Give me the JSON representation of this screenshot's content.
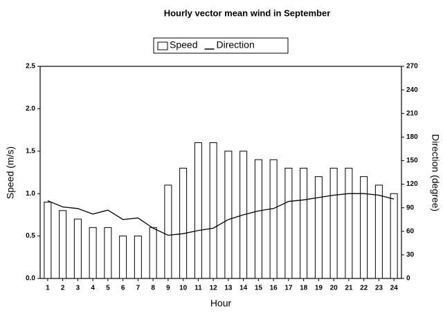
{
  "chart_data": {
    "type": "bar",
    "title": "Hourly vector mean wind in September",
    "xlabel": "Hour",
    "ylabel": "Speed (m/s)",
    "y2label": "Direction (degree)",
    "categories": [
      "1",
      "2",
      "3",
      "4",
      "5",
      "6",
      "7",
      "8",
      "9",
      "10",
      "11",
      "12",
      "13",
      "14",
      "15",
      "16",
      "17",
      "18",
      "19",
      "20",
      "21",
      "22",
      "23",
      "24"
    ],
    "series": [
      {
        "name": "Speed",
        "type": "bar",
        "color": "#ffffff",
        "values": [
          0.9,
          0.8,
          0.7,
          0.6,
          0.6,
          0.5,
          0.5,
          0.6,
          1.1,
          1.3,
          1.6,
          1.6,
          1.5,
          1.5,
          1.4,
          1.4,
          1.3,
          1.3,
          1.2,
          1.3,
          1.3,
          1.2,
          1.1,
          1.0
        ]
      },
      {
        "name": "Direction",
        "type": "line",
        "axis": "y2",
        "color": "#000000",
        "values": [
          99,
          91,
          89,
          82,
          87,
          75,
          77,
          64,
          55,
          57,
          61,
          64,
          75,
          81,
          86,
          89,
          98,
          100,
          103,
          106,
          108,
          108,
          106,
          101
        ]
      }
    ],
    "ylim": [
      0,
      2.5
    ],
    "yticks": [
      {
        "value": 0,
        "label": "0.0"
      },
      0.5,
      {
        "value": 1,
        "label": "1.0"
      },
      1.5,
      {
        "value": 2,
        "label": "2.0"
      },
      2.5
    ],
    "y2lim": [
      0,
      270
    ],
    "y2ticks": [
      0,
      30,
      60,
      90,
      120,
      150,
      180,
      210,
      240,
      270
    ],
    "legend": "top"
  }
}
